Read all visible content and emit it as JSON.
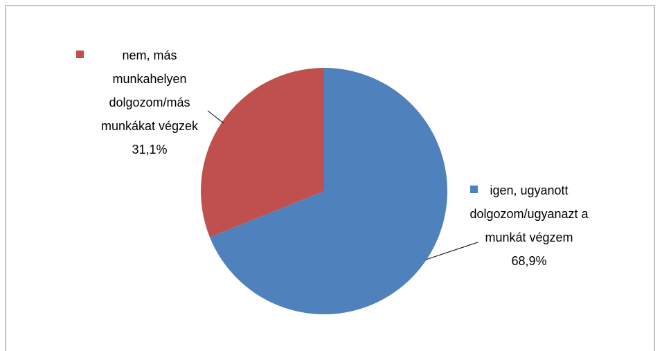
{
  "chart_data": {
    "type": "pie",
    "categories": [
      "igen, ugyanott dolgozom/ugyanazt a munkát végzem",
      "nem, más munkahelyen dolgozom/más munkákat végzek"
    ],
    "values": [
      68.9,
      31.1
    ],
    "value_labels": [
      "68,9%",
      "31,1%"
    ],
    "colors": [
      "#4f81bd",
      "#c0504d"
    ]
  }
}
